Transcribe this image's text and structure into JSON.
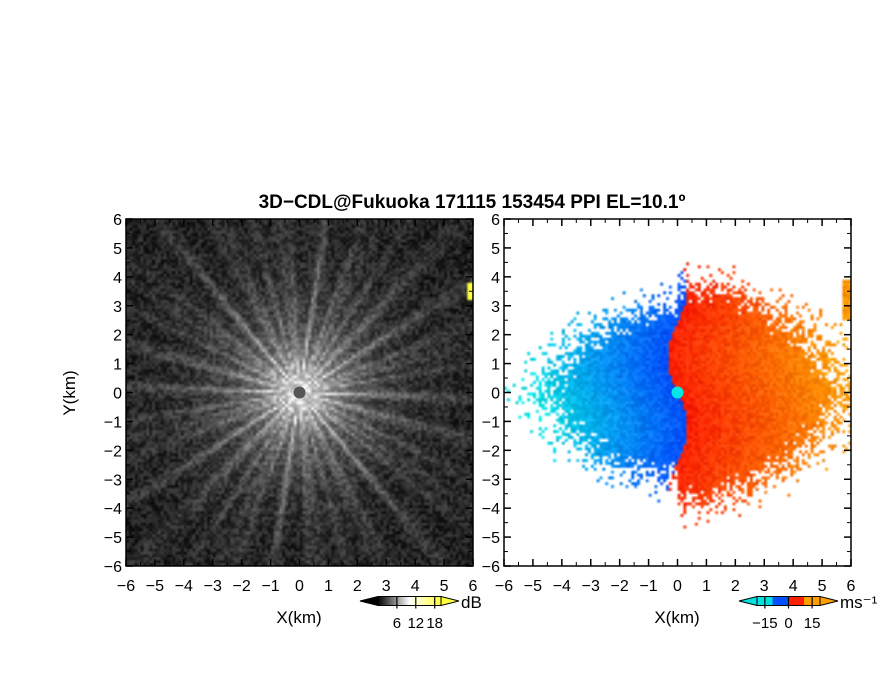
{
  "title": "3D−CDL@Fukuoka 171115 153454 PPI EL=10.1º",
  "chart_data": [
    {
      "type": "heatmap",
      "name": "snr-panel",
      "xlabel": "X(km)",
      "ylabel": "Y(km)",
      "xlim": [
        -6,
        6
      ],
      "ylim": [
        -6,
        6
      ],
      "xticks": [
        "−6",
        "−5",
        "−4",
        "−3",
        "−2",
        "−1",
        "0",
        "1",
        "2",
        "3",
        "4",
        "5",
        "6"
      ],
      "yticks": [
        "−6",
        "−5",
        "−4",
        "−3",
        "−2",
        "−1",
        "0",
        "1",
        "2",
        "3",
        "4",
        "5",
        "6"
      ],
      "colorbar": {
        "unit": "dB",
        "ticks": [
          "6",
          "12",
          "18"
        ],
        "tick_values": [
          6,
          12,
          18
        ],
        "range": [
          0,
          20
        ],
        "colors": [
          "#000000",
          "#ffffff",
          "#ffff40"
        ]
      },
      "features": {
        "center_marker": [
          0,
          0
        ],
        "center_color": "#555555",
        "pattern": "radial-speckle",
        "edge_echo": {
          "x": 6,
          "y": 3.5,
          "color": "#ffff40"
        }
      }
    },
    {
      "type": "heatmap",
      "name": "doppler-velocity-panel",
      "xlabel": "X(km)",
      "ylabel": "",
      "xlim": [
        -6,
        6
      ],
      "ylim": [
        -6,
        6
      ],
      "xticks": [
        "−6",
        "−5",
        "−4",
        "−3",
        "−2",
        "−1",
        "0",
        "1",
        "2",
        "3",
        "4",
        "5",
        "6"
      ],
      "yticks": [
        "−6",
        "−5",
        "−4",
        "−3",
        "−2",
        "−1",
        "0",
        "1",
        "2",
        "3",
        "4",
        "5",
        "6"
      ],
      "colorbar": {
        "unit": "ms⁻¹",
        "ticks": [
          "−15",
          "0",
          "15"
        ],
        "tick_values": [
          -15,
          0,
          15
        ],
        "range": [
          -20,
          20
        ],
        "colors": [
          "#00e0e0",
          "#0050ff",
          "#ff2000",
          "#ffa000"
        ]
      },
      "features": {
        "center_marker": [
          0,
          0
        ],
        "center_color": "#00e8e8",
        "pattern": "negative-west-positive-east",
        "edge_echo": {
          "x": 6,
          "y": 3.2,
          "color": "#ff9000"
        }
      }
    }
  ]
}
